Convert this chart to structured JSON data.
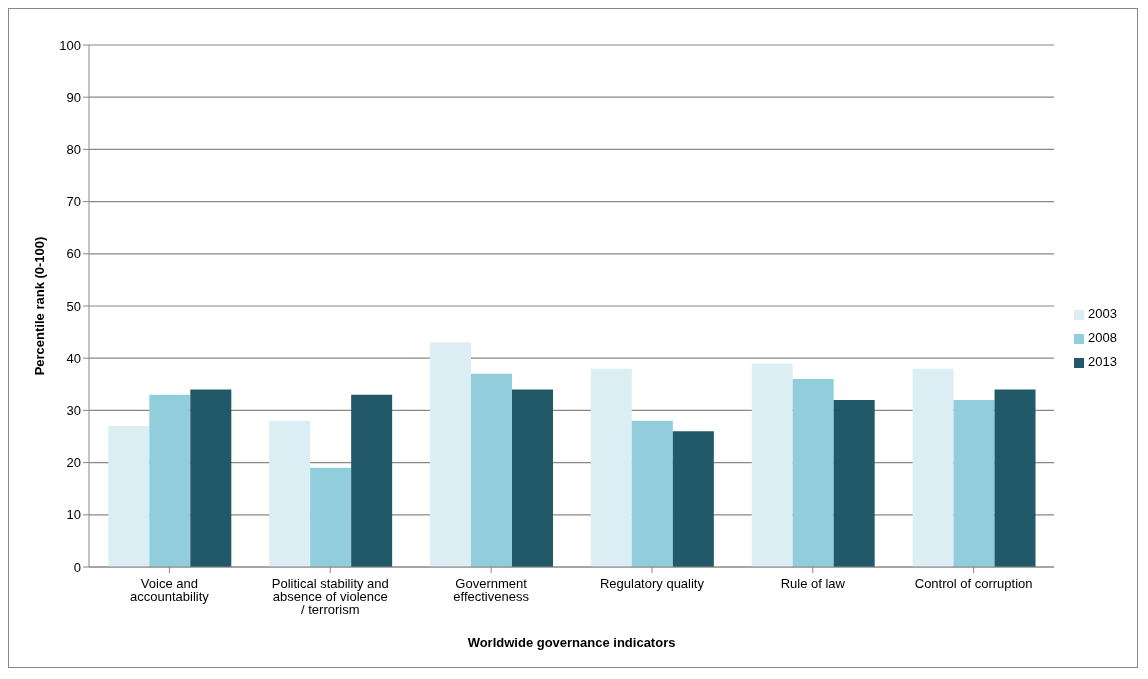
{
  "chart_data": {
    "type": "bar",
    "xlabel": "Worldwide governance indicators",
    "ylabel": "Percentile rank (0-100)",
    "categories": [
      "Voice and accountability",
      "Political stability and absence of violence / terrorism",
      "Government effectiveness",
      "Regulatory quality",
      "Rule of law",
      "Control of corruption"
    ],
    "series": [
      {
        "name": "2003",
        "color": "#dbeef4",
        "values": [
          27,
          28,
          43,
          38,
          39,
          38
        ]
      },
      {
        "name": "2008",
        "color": "#92cddc",
        "values": [
          33,
          19,
          37,
          28,
          36,
          32
        ]
      },
      {
        "name": "2013",
        "color": "#215968",
        "values": [
          34,
          33,
          34,
          26,
          32,
          34
        ]
      }
    ],
    "ylim": [
      0,
      100
    ],
    "yticks": [
      0,
      10,
      20,
      30,
      40,
      50,
      60,
      70,
      80,
      90,
      100
    ],
    "grid": "y",
    "legend": "right"
  }
}
